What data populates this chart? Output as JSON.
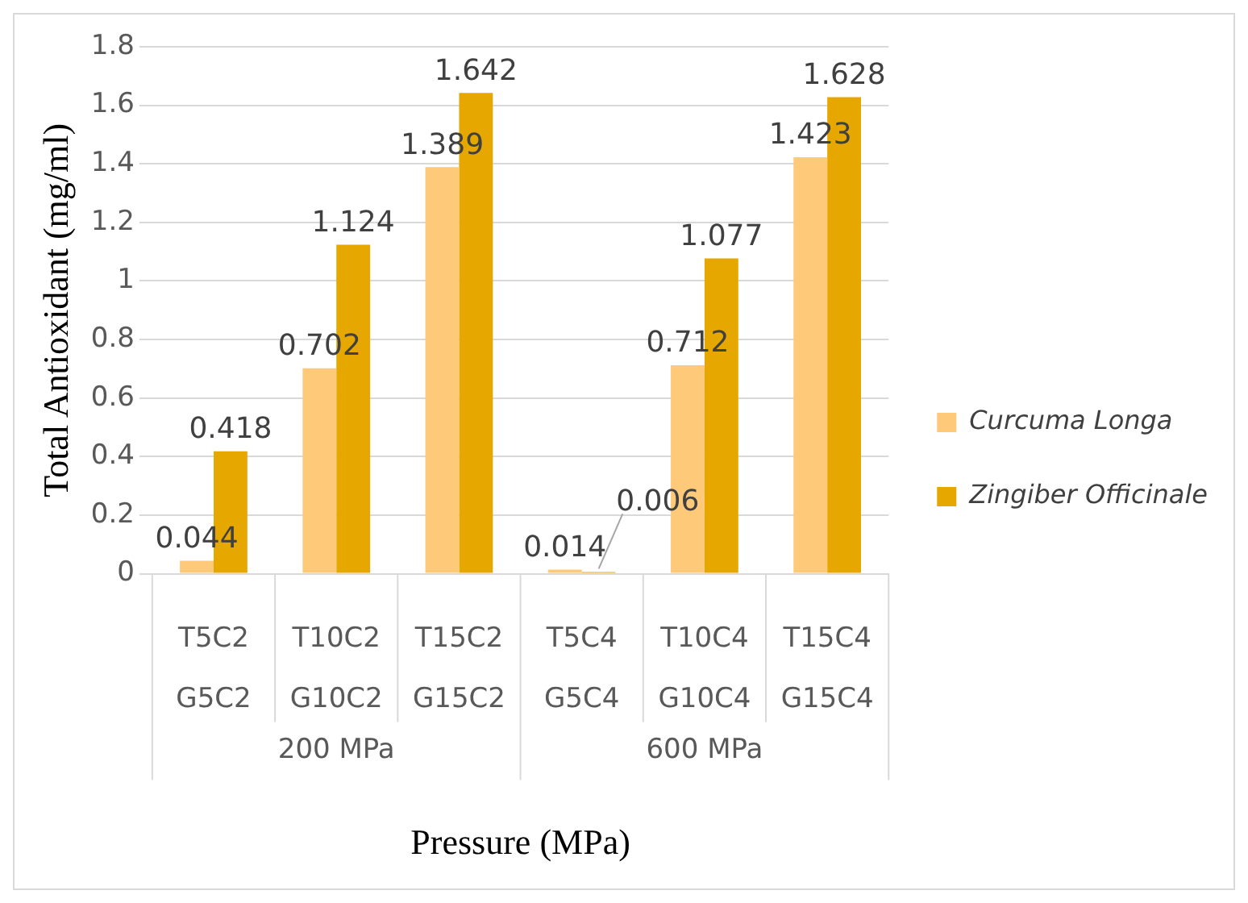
{
  "chart_data": {
    "type": "bar",
    "xlabel": "Pressure (MPa)",
    "ylabel": "Total Antioxidant (mg/ml)",
    "categories": [
      "T5C2\nG5C2",
      "T10C2\nG10C2",
      "T15C2\nG15C2",
      "T5C4\nG5C4",
      "T10C4\nG10C4",
      "T15C4\nG15C4"
    ],
    "series": [
      {
        "name": "Curcuma Longa",
        "color": "#ffc97a",
        "values": [
          0.044,
          0.702,
          1.389,
          0.014,
          0.712,
          1.423
        ]
      },
      {
        "name": "Zingiber Officinale",
        "color": "#e5a700",
        "values": [
          0.418,
          1.124,
          1.642,
          0.006,
          1.077,
          1.628
        ]
      }
    ],
    "annotations": [
      "200 MPa",
      "600 MPa"
    ],
    "ylim": [
      0,
      1.8
    ],
    "yticks": [
      0,
      0.2,
      0.4,
      0.6,
      0.8,
      1,
      1.2,
      1.4,
      1.6,
      1.8
    ],
    "grid": "y",
    "legend": "right",
    "data_labels": true
  }
}
